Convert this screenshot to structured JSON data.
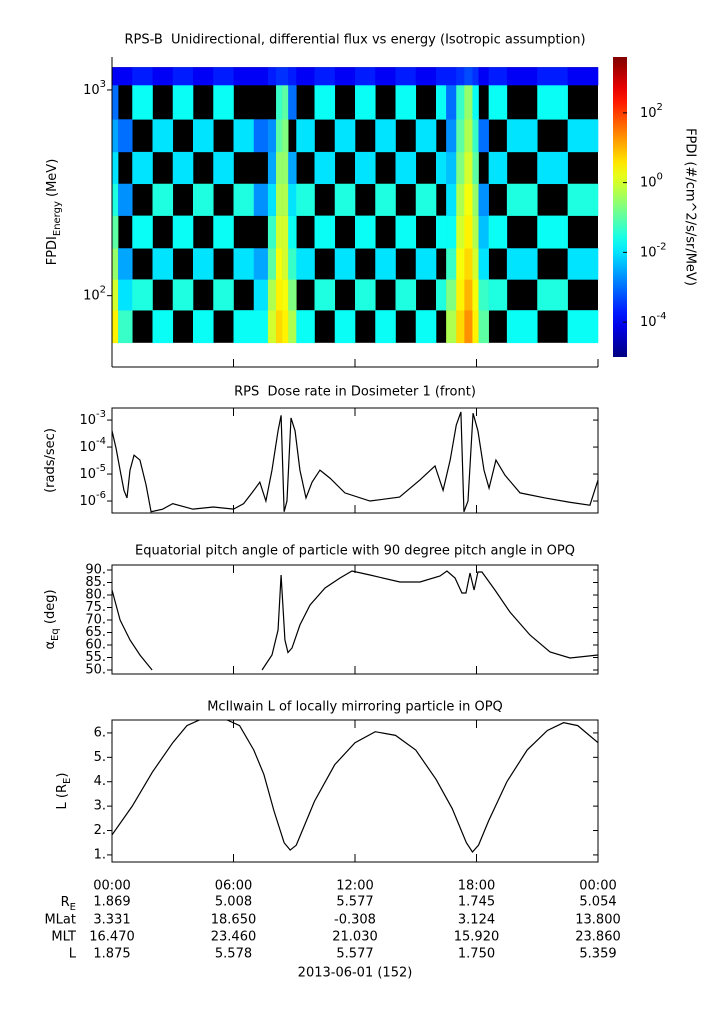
{
  "chart_data": [
    {
      "type": "heatmap",
      "title": "RPS-B  Unidirectional, differential flux vs energy (Isotropic assumption)",
      "ylabel": [
        "FPDI",
        "Energy",
        " (MeV)"
      ],
      "xlim": [
        0,
        24
      ],
      "ylim": [
        45,
        1446
      ],
      "ylog": true,
      "yticks": [
        {
          "value": 100,
          "label": [
            "10",
            "2"
          ]
        },
        {
          "value": 1000,
          "label": [
            "10",
            "3"
          ]
        }
      ],
      "x": [
        0,
        0.3,
        1,
        2,
        3,
        4,
        5,
        6,
        7,
        7.7,
        8.1,
        8.4,
        8.7,
        9.1,
        10,
        11,
        12,
        13,
        14,
        15,
        16,
        16.5,
        17,
        17.4,
        17.8,
        18.1,
        18.6,
        19.5,
        21,
        22.5,
        24
      ],
      "y": [
        59,
        85,
        120,
        170,
        245,
        350,
        500,
        720,
        1057,
        1290
      ],
      "values": [
        [
          3,
          1,
          0.3,
          0.1,
          0.03,
          0.01,
          0.003,
          0.001,
          0.0001
        ],
        [
          0.05,
          0.01,
          0.003,
          null,
          0.002,
          null,
          0.001,
          null,
          0.0001
        ],
        [
          null,
          0.03,
          null,
          0.02,
          null,
          0.01,
          null,
          0.02,
          0.0002
        ],
        [
          0.02,
          null,
          0.01,
          null,
          0.03,
          null,
          0.01,
          null,
          0.0001
        ],
        [
          null,
          0.03,
          null,
          0.02,
          null,
          0.01,
          null,
          0.02,
          0.0002
        ],
        [
          0.02,
          null,
          0.01,
          null,
          0.03,
          null,
          0.01,
          null,
          0.0001
        ],
        [
          null,
          0.03,
          null,
          0.02,
          null,
          0.01,
          null,
          0.02,
          0.0002
        ],
        [
          0.02,
          null,
          0.01,
          null,
          0.03,
          null,
          0.01,
          null,
          0.0001
        ],
        [
          0.02,
          0.01,
          0.003,
          null,
          0.002,
          null,
          0.001,
          null,
          0.0001
        ],
        [
          1,
          0.5,
          0.1,
          0.05,
          0.01,
          0.003,
          0.002,
          null,
          0.0002
        ],
        [
          5,
          3,
          2,
          1,
          0.5,
          0.3,
          0.1,
          0.05,
          0.0003
        ],
        [
          3,
          2,
          1,
          1,
          0.5,
          0.3,
          0.2,
          0.1,
          0.0003
        ],
        [
          0.5,
          0.2,
          0.05,
          0.02,
          0.01,
          0.003,
          null,
          0.001,
          0.0002
        ],
        [
          0.02,
          null,
          0.01,
          null,
          0.03,
          null,
          0.01,
          null,
          0.0001
        ],
        [
          null,
          0.03,
          null,
          0.02,
          null,
          0.01,
          null,
          0.02,
          0.0002
        ],
        [
          0.02,
          null,
          0.01,
          null,
          0.03,
          null,
          0.01,
          null,
          0.0001
        ],
        [
          null,
          0.03,
          null,
          0.02,
          null,
          0.01,
          null,
          0.02,
          0.0002
        ],
        [
          0.02,
          null,
          0.01,
          null,
          0.03,
          null,
          0.01,
          null,
          0.0001
        ],
        [
          null,
          0.03,
          null,
          0.02,
          null,
          0.01,
          null,
          0.02,
          0.0002
        ],
        [
          0.02,
          null,
          0.01,
          null,
          0.03,
          null,
          0.01,
          null,
          0.0001
        ],
        [
          null,
          0.03,
          null,
          0.02,
          null,
          0.01,
          null,
          0.02,
          0.0002
        ],
        [
          0.5,
          0.2,
          0.05,
          0.02,
          0.01,
          0.005,
          0.002,
          0.001,
          0.0002
        ],
        [
          5,
          3,
          2,
          1,
          0.5,
          0.2,
          0.1,
          0.05,
          0.0003
        ],
        [
          20,
          10,
          5,
          3,
          2,
          1,
          0.5,
          0.3,
          0.0005
        ],
        [
          3,
          2,
          1,
          0.5,
          0.3,
          0.1,
          0.05,
          0.02,
          0.0003
        ],
        [
          0.1,
          0.05,
          0.01,
          0.005,
          0.002,
          null,
          0.001,
          null,
          0.0001
        ],
        [
          null,
          0.03,
          null,
          0.02,
          null,
          0.01,
          null,
          0.02,
          0.0002
        ],
        [
          0.02,
          null,
          0.01,
          null,
          0.03,
          null,
          0.01,
          null,
          0.0001
        ],
        [
          null,
          0.03,
          null,
          0.02,
          null,
          0.01,
          null,
          0.02,
          0.0002
        ],
        [
          0.02,
          null,
          0.01,
          null,
          0.03,
          null,
          0.01,
          null,
          0.0001
        ]
      ],
      "zlim": [
        1e-05,
        4000
      ],
      "zlabel": "FPDI (#/cm^2/s/sr/MeV)",
      "zticks": [
        {
          "value": 0.0001,
          "label": [
            "10",
            "-4"
          ]
        },
        {
          "value": 0.01,
          "label": [
            "10",
            "-2"
          ]
        },
        {
          "value": 1,
          "label": [
            "10",
            "0"
          ]
        },
        {
          "value": 100,
          "label": [
            "10",
            "2"
          ]
        }
      ]
    },
    {
      "type": "line",
      "title": "RPS  Dose rate in Dosimeter 1 (front)",
      "ylabel": [
        "(rads/sec)"
      ],
      "xlim": [
        0,
        24
      ],
      "ylim": [
        3.6e-07,
        0.0028
      ],
      "ylog": true,
      "yticks": [
        {
          "value": 1e-06,
          "label": [
            "10",
            "-6"
          ]
        },
        {
          "value": 1e-05,
          "label": [
            "10",
            "-5"
          ]
        },
        {
          "value": 0.0001,
          "label": [
            "10",
            "-4"
          ]
        },
        {
          "value": 0.001,
          "label": [
            "10",
            "-3"
          ]
        }
      ],
      "color": "#000000",
      "x": [
        0,
        0.2,
        0.4,
        0.59,
        0.74,
        0.89,
        1.09,
        1.38,
        1.68,
        1.93,
        2.5,
        3,
        4,
        5,
        6,
        6.5,
        6.91,
        7.3,
        7.6,
        7.9,
        8.2,
        8.35,
        8.5,
        8.64,
        8.84,
        9.04,
        9.28,
        9.58,
        9.88,
        10.27,
        10.77,
        11.5,
        12.74,
        14.2,
        15.2,
        15.95,
        16.35,
        16.7,
        17.0,
        17.23,
        17.38,
        17.58,
        17.83,
        18.07,
        18.37,
        18.62,
        18.96,
        19.41,
        20.15,
        21.38,
        22.6,
        23.6,
        24
      ],
      "values": [
        0.0004,
        9e-05,
        1.4e-05,
        2.5e-06,
        1.3e-06,
        1.4e-05,
        5e-05,
        3.3e-05,
        4e-06,
        4e-07,
        5e-07,
        8e-07,
        5e-07,
        6e-07,
        5e-07,
        8e-07,
        2e-06,
        5e-06,
        1e-06,
        1.4e-05,
        0.0004,
        0.0015,
        4e-07,
        1e-06,
        0.0012,
        0.0004,
        1.4e-05,
        1.3e-06,
        5e-06,
        1.4e-05,
        7e-06,
        2e-06,
        1e-06,
        1.4e-06,
        6e-06,
        2e-05,
        2.5e-06,
        3.3e-05,
        0.00065,
        0.002,
        4e-07,
        1e-06,
        0.0018,
        0.0004,
        1.4e-05,
        3e-06,
        3.3e-05,
        9e-06,
        2e-06,
        1.3e-06,
        9e-07,
        7e-07,
        6e-06
      ]
    },
    {
      "type": "line",
      "title": "Equatorial pitch angle of particle with 90 degree pitch angle in OPQ",
      "ylabel": [
        "α",
        "Eq",
        " (deg)"
      ],
      "xlim": [
        0,
        24
      ],
      "ylim": [
        48.4,
        92
      ],
      "yticks": [
        {
          "value": 50,
          "label": "50."
        },
        {
          "value": 55,
          "label": "55."
        },
        {
          "value": 60,
          "label": "60."
        },
        {
          "value": 65,
          "label": "65."
        },
        {
          "value": 70,
          "label": "70."
        },
        {
          "value": 75,
          "label": "75."
        },
        {
          "value": 80,
          "label": "80."
        },
        {
          "value": 85,
          "label": "85."
        },
        {
          "value": 90,
          "label": "90."
        }
      ],
      "color": "#000000",
      "x": [
        0,
        0.4,
        0.89,
        1.38,
        1.98,
        4.5,
        7.41,
        7.9,
        8.2,
        8.35,
        8.54,
        8.69,
        8.89,
        9.28,
        9.78,
        10.52,
        11.26,
        11.85,
        12.74,
        14.22,
        15.21,
        16.2,
        16.54,
        16.94,
        17.28,
        17.48,
        17.68,
        17.88,
        18.07,
        18.27,
        18.91,
        19.65,
        20.64,
        21.63,
        22.62,
        24
      ],
      "values": [
        82,
        70,
        62,
        56,
        50,
        null,
        50,
        56,
        66,
        88,
        62,
        57,
        58.8,
        68,
        76,
        82.8,
        86.8,
        89.6,
        88,
        85.2,
        85.2,
        87.6,
        89.6,
        86.8,
        80.8,
        80.8,
        88.8,
        82,
        89.2,
        89.2,
        82,
        73.2,
        64,
        57.2,
        54.8,
        56
      ]
    },
    {
      "type": "line",
      "title": "McIlwain L of locally mirroring particle in OPQ",
      "ylabel": [
        "L (R",
        "E",
        ")"
      ],
      "xlim": [
        0,
        24
      ],
      "ylim": [
        0.71,
        6.53
      ],
      "yticks": [
        {
          "value": 1,
          "label": "1."
        },
        {
          "value": 2,
          "label": "2."
        },
        {
          "value": 3,
          "label": "3."
        },
        {
          "value": 4,
          "label": "4."
        },
        {
          "value": 5,
          "label": "5."
        },
        {
          "value": 6,
          "label": "6."
        }
      ],
      "xticks": [
        {
          "value": 0,
          "label": "00:00"
        },
        {
          "value": 6,
          "label": "06:00"
        },
        {
          "value": 12,
          "label": "12:00"
        },
        {
          "value": 18,
          "label": "18:00"
        },
        {
          "value": 24,
          "label": "00:00"
        }
      ],
      "color": "#000000",
      "x": [
        0,
        1,
        2,
        3,
        3.7,
        4.5,
        5.5,
        6.3,
        7,
        7.5,
        8,
        8.5,
        8.8,
        9.1,
        9.5,
        10,
        11,
        12,
        13,
        14,
        15,
        16,
        16.8,
        17.5,
        17.8,
        18.1,
        18.6,
        19.5,
        20.5,
        21.5,
        22.3,
        23,
        24
      ],
      "values": [
        1.82,
        3.0,
        4.4,
        5.6,
        6.3,
        6.6,
        6.6,
        6.3,
        5.3,
        4.3,
        2.8,
        1.5,
        1.2,
        1.4,
        2.2,
        3.2,
        4.7,
        5.6,
        6.05,
        5.9,
        5.3,
        4.1,
        2.9,
        1.5,
        1.12,
        1.4,
        2.4,
        4.0,
        5.3,
        6.1,
        6.42,
        6.3,
        5.6
      ]
    }
  ],
  "ephemeris": {
    "rows": [
      {
        "label": [
          "R",
          "E"
        ],
        "values": [
          "1.869",
          "5.008",
          "5.577",
          "1.745",
          "5.054"
        ]
      },
      {
        "label": "MLat",
        "values": [
          "3.331",
          "18.650",
          "-0.308",
          "3.124",
          "13.800"
        ]
      },
      {
        "label": "MLT",
        "values": [
          "16.470",
          "23.460",
          "21.030",
          "15.920",
          "23.860"
        ]
      },
      {
        "label": "L",
        "values": [
          "1.875",
          "5.578",
          "5.577",
          "1.750",
          "5.359"
        ]
      }
    ],
    "date": "2013-06-01 (152)"
  }
}
